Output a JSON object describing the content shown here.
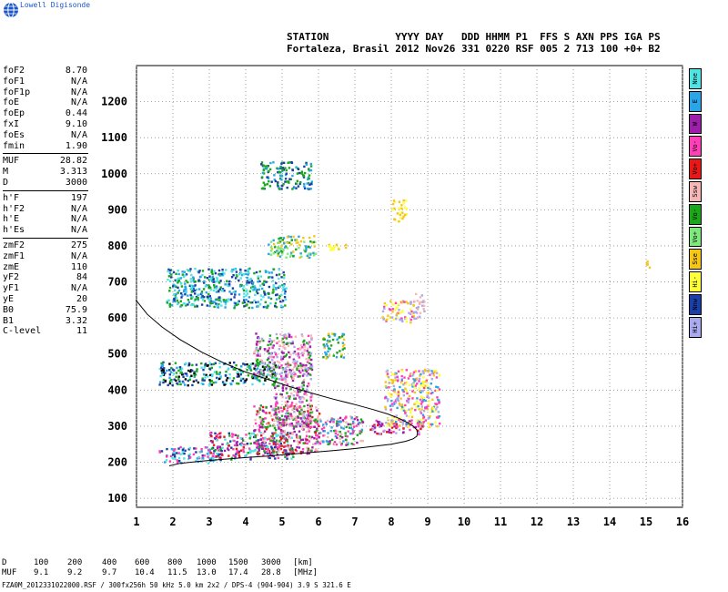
{
  "brand": {
    "label": "Lowell Digisonde",
    "icon": "globe-logo-icon"
  },
  "header": {
    "line1": "STATION           YYYY DAY   DDD HHMM P1  FFS S AXN PPS IGA PS",
    "line2": "Fortaleza, Brasil 2012 Nov26 331 0220 RSF 005 2 713 100 +0+ B2"
  },
  "params": [
    {
      "label": "foF2",
      "value": "8.70"
    },
    {
      "label": "foF1",
      "value": "N/A"
    },
    {
      "label": "foF1p",
      "value": "N/A"
    },
    {
      "label": "foE",
      "value": "N/A"
    },
    {
      "label": "foEp",
      "value": "0.44"
    },
    {
      "label": "fxI",
      "value": "9.10"
    },
    {
      "label": "foEs",
      "value": "N/A"
    },
    {
      "label": "fmin",
      "value": "1.90"
    },
    {
      "sep": true
    },
    {
      "label": "MUF",
      "value": "28.82"
    },
    {
      "label": "M",
      "value": "3.313"
    },
    {
      "label": "D",
      "value": "3000"
    },
    {
      "sep": true
    },
    {
      "label": "h'F",
      "value": "197"
    },
    {
      "label": "h'F2",
      "value": "N/A"
    },
    {
      "label": "h'E",
      "value": "N/A"
    },
    {
      "label": "h'Es",
      "value": "N/A"
    },
    {
      "sep": true
    },
    {
      "label": "zmF2",
      "value": "275"
    },
    {
      "label": "zmF1",
      "value": "N/A"
    },
    {
      "label": "zmE",
      "value": "110"
    },
    {
      "label": "yF2",
      "value": "84"
    },
    {
      "label": "yF1",
      "value": "N/A"
    },
    {
      "label": "yE",
      "value": "20"
    },
    {
      "label": "B0",
      "value": "75.9"
    },
    {
      "label": "B1",
      "value": "3.32"
    },
    {
      "label": "C-level",
      "value": "11"
    }
  ],
  "legend": [
    {
      "label": "Nne",
      "color": "#4fe3e3"
    },
    {
      "label": "E",
      "color": "#2aa5e8"
    },
    {
      "label": "W",
      "color": "#9b1fa8"
    },
    {
      "label": "Vo-",
      "color": "#ff3fb8"
    },
    {
      "label": "Vo+",
      "color": "#e81818"
    },
    {
      "label": "Ssw",
      "color": "#f5b6b6"
    },
    {
      "label": "Vo-",
      "color": "#1aa81a"
    },
    {
      "label": "Vo+",
      "color": "#7ee87e"
    },
    {
      "label": "Sse",
      "color": "#f5c518"
    },
    {
      "label": "Hi-",
      "color": "#ffff3a"
    },
    {
      "label": "Nnw",
      "color": "#1a3fa8"
    },
    {
      "label": "Hi+",
      "color": "#aaaaee"
    }
  ],
  "dtable": {
    "rows": [
      {
        "label": "D",
        "values": [
          "100",
          "200",
          "400",
          "600",
          "800",
          "1000",
          "1500",
          "3000"
        ],
        "unit": "[km]"
      },
      {
        "label": "MUF",
        "values": [
          "9.1",
          "9.2",
          "9.7",
          "10.4",
          "11.5",
          "13.0",
          "17.4",
          "28.8"
        ],
        "unit": "[MHz]"
      }
    ]
  },
  "footer": "FZA0M_2012331022000.RSF / 300fx256h 50 kHz 5.0 km 2x2 / DPS-4 (904-904)  3.9 S 321.6 E",
  "chart_data": {
    "type": "scatter",
    "title": "",
    "xlabel": "",
    "ylabel": "",
    "xlim": [
      1,
      16
    ],
    "ylim": [
      75,
      1300
    ],
    "grid": true,
    "x_ticks": [
      1,
      2,
      3,
      4,
      5,
      6,
      7,
      8,
      9,
      10,
      11,
      12,
      13,
      14,
      15,
      16
    ],
    "y_ticks": [
      100,
      200,
      300,
      400,
      500,
      600,
      700,
      800,
      900,
      1000,
      1100,
      1200
    ],
    "profile_curve": {
      "x": [
        0.98,
        1.3,
        1.7,
        2.2,
        2.8,
        3.4,
        4.0,
        4.6,
        5.2,
        5.8,
        6.4,
        7.0,
        7.5,
        7.9,
        8.2,
        8.45,
        8.6,
        8.7,
        8.72,
        8.7,
        8.6,
        8.4,
        8.0,
        7.5,
        7.0,
        6.4,
        5.8,
        5.2,
        4.6,
        4.0,
        3.4,
        2.8,
        2.2,
        1.9
      ],
      "y": [
        650,
        610,
        575,
        540,
        505,
        475,
        450,
        430,
        410,
        392,
        375,
        360,
        346,
        334,
        322,
        310,
        300,
        290,
        280,
        272,
        265,
        258,
        250,
        244,
        238,
        232,
        227,
        222,
        217,
        213,
        208,
        203,
        197,
        190
      ]
    },
    "echo_regions": [
      {
        "x0": 1.6,
        "x1": 3.3,
        "y0": 200,
        "y1": 245,
        "colors": [
          "#2aa5e8",
          "#4fe3e3",
          "#ff3fb8",
          "#1a3fa8"
        ]
      },
      {
        "x0": 3.0,
        "x1": 5.3,
        "y0": 210,
        "y1": 285,
        "colors": [
          "#ff3fb8",
          "#e81818",
          "#9b1fa8",
          "#4fe3e3",
          "#1aa81a",
          "#1a3fa8"
        ]
      },
      {
        "x0": 4.2,
        "x1": 6.0,
        "y0": 225,
        "y1": 360,
        "colors": [
          "#ff3fb8",
          "#9b1fa8",
          "#f5b6b6",
          "#e81818",
          "#1aa81a"
        ]
      },
      {
        "x0": 4.7,
        "x1": 5.8,
        "y0": 300,
        "y1": 480,
        "colors": [
          "#f5b6b6",
          "#ff3fb8",
          "#9b1fa8",
          "#1aa81a",
          "#aaaaee"
        ]
      },
      {
        "x0": 5.9,
        "x1": 7.2,
        "y0": 250,
        "y1": 330,
        "colors": [
          "#ff3fb8",
          "#9b1fa8",
          "#1aa81a",
          "#f5b6b6",
          "#2aa5e8"
        ]
      },
      {
        "x0": 7.4,
        "x1": 8.9,
        "y0": 280,
        "y1": 320,
        "colors": [
          "#ff3fb8",
          "#9b1fa8",
          "#e81818",
          "#aaaaee"
        ]
      },
      {
        "x0": 7.8,
        "x1": 9.3,
        "y0": 300,
        "y1": 460,
        "colors": [
          "#ffff3a",
          "#f5c518",
          "#aaaaee",
          "#2aa5e8",
          "#ff3fb8"
        ]
      },
      {
        "x0": 1.6,
        "x1": 4.8,
        "y0": 415,
        "y1": 480,
        "colors": [
          "#2aa5e8",
          "#4fe3e3",
          "#1a3fa8",
          "#1aa81a",
          "#000000"
        ]
      },
      {
        "x0": 4.2,
        "x1": 5.8,
        "y0": 440,
        "y1": 560,
        "colors": [
          "#1aa81a",
          "#f5b6b6",
          "#ff3fb8",
          "#9b1fa8",
          "#aaaaee"
        ]
      },
      {
        "x0": 6.1,
        "x1": 6.7,
        "y0": 490,
        "y1": 560,
        "colors": [
          "#1aa81a",
          "#f5c518",
          "#2aa5e8"
        ]
      },
      {
        "x0": 1.8,
        "x1": 5.1,
        "y0": 630,
        "y1": 740,
        "colors": [
          "#2aa5e8",
          "#4fe3e3",
          "#1aa81a",
          "#1a3fa8"
        ]
      },
      {
        "x0": 4.6,
        "x1": 5.9,
        "y0": 770,
        "y1": 830,
        "colors": [
          "#1aa81a",
          "#f5c518",
          "#2aa5e8",
          "#7ee87e"
        ]
      },
      {
        "x0": 7.7,
        "x1": 8.6,
        "y0": 590,
        "y1": 650,
        "colors": [
          "#ffff3a",
          "#aaaaee",
          "#f5c518",
          "#ff3fb8"
        ]
      },
      {
        "x0": 8.6,
        "x1": 8.9,
        "y0": 600,
        "y1": 670,
        "colors": [
          "#aaaaee",
          "#f5b6b6"
        ]
      },
      {
        "x0": 8.0,
        "x1": 8.4,
        "y0": 870,
        "y1": 930,
        "colors": [
          "#ffff3a",
          "#f5c518"
        ]
      },
      {
        "x0": 4.4,
        "x1": 5.8,
        "y0": 960,
        "y1": 1035,
        "colors": [
          "#1aa81a",
          "#2aa5e8",
          "#1a3fa8"
        ]
      },
      {
        "x0": 6.2,
        "x1": 6.8,
        "y0": 790,
        "y1": 810,
        "colors": [
          "#f5c518",
          "#ffff3a"
        ]
      },
      {
        "x0": 14.95,
        "x1": 15.1,
        "y0": 740,
        "y1": 760,
        "colors": [
          "#f5c518"
        ]
      }
    ]
  }
}
